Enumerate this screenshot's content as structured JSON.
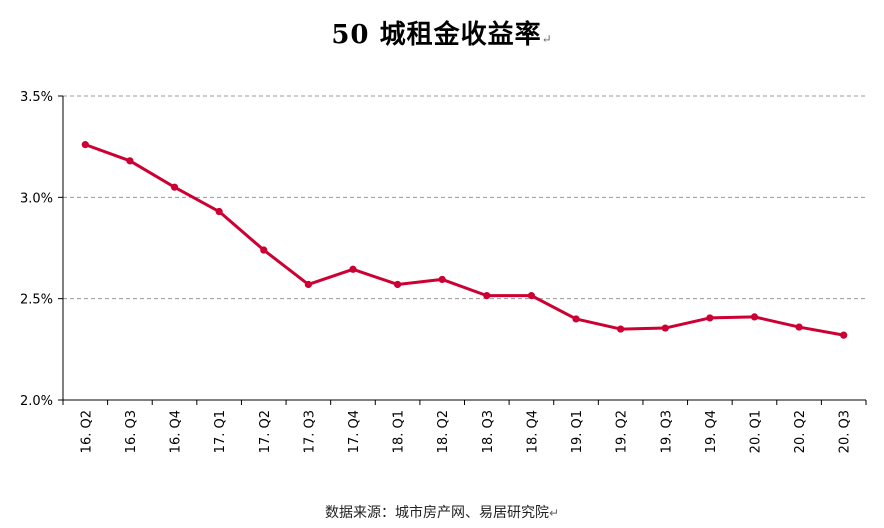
{
  "chart_data": {
    "type": "line",
    "title": "50 城租金收益率",
    "title_mark": "↵",
    "source": "数据来源：城市房产网、易居研究院",
    "source_mark": "↵",
    "xlabel": "",
    "ylabel": "",
    "categories": [
      "16. Q2",
      "16. Q3",
      "16. Q4",
      "17. Q1",
      "17. Q2",
      "17. Q3",
      "17. Q4",
      "18. Q1",
      "18. Q2",
      "18. Q3",
      "18. Q4",
      "19. Q1",
      "19. Q2",
      "19. Q3",
      "19. Q4",
      "20. Q1",
      "20. Q2",
      "20. Q3"
    ],
    "series": [
      {
        "name": "",
        "values": [
          3.26,
          3.18,
          3.05,
          2.93,
          2.74,
          2.57,
          2.645,
          2.57,
          2.595,
          2.515,
          2.515,
          2.4,
          2.35,
          2.355,
          2.405,
          2.41,
          2.36,
          2.32
        ],
        "color": "#CC0033"
      }
    ],
    "ylim": [
      2.0,
      3.5
    ],
    "yticks": [
      2.0,
      2.5,
      3.0,
      3.5
    ],
    "ytick_labels": [
      "2.0%",
      "2.5%",
      "3.0%",
      "3.5%"
    ],
    "grid": true,
    "legend": "none"
  }
}
